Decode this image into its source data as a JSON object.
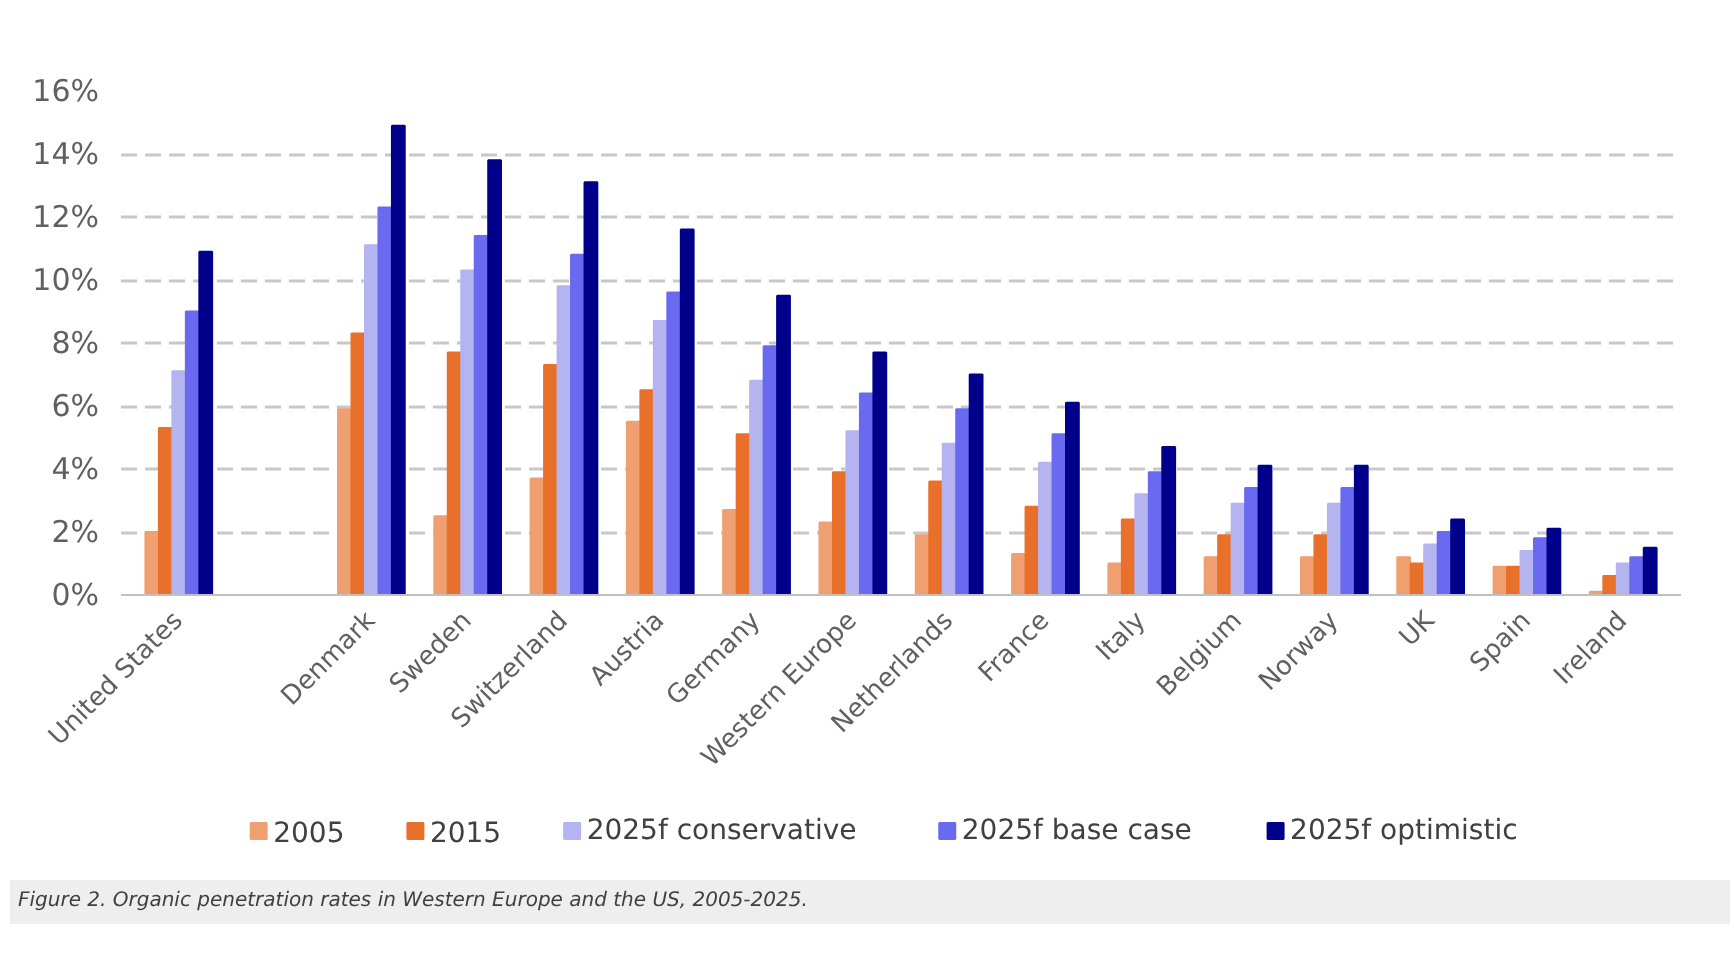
{
  "chart_data": {
    "type": "bar",
    "categories": [
      "United States",
      null,
      "Denmark",
      "Sweden",
      "Switzerland",
      "Austria",
      "Germany",
      "Western Europe",
      "Netherlands",
      "France",
      "Italy",
      "Belgium",
      "Norway",
      "UK",
      "Spain",
      "Ireland"
    ],
    "series": [
      {
        "name": "2005",
        "color": "#f0a070",
        "values": [
          2.0,
          null,
          5.9,
          2.5,
          3.7,
          5.5,
          2.7,
          2.3,
          1.9,
          1.3,
          1.0,
          1.2,
          1.2,
          1.2,
          0.9,
          0.1
        ]
      },
      {
        "name": "2015",
        "color": "#e8702a",
        "values": [
          5.3,
          null,
          8.3,
          7.7,
          7.3,
          6.5,
          5.1,
          3.9,
          3.6,
          2.8,
          2.4,
          1.9,
          1.9,
          1.0,
          0.9,
          0.6
        ]
      },
      {
        "name": "2025f conservative",
        "color": "#b4b4f0",
        "values": [
          7.1,
          null,
          11.1,
          10.3,
          9.8,
          8.7,
          6.8,
          5.2,
          4.8,
          4.2,
          3.2,
          2.9,
          2.9,
          1.6,
          1.4,
          1.0
        ]
      },
      {
        "name": "2025f base case",
        "color": "#6a6af0",
        "values": [
          9.0,
          null,
          12.3,
          11.4,
          10.8,
          9.6,
          7.9,
          6.4,
          5.9,
          5.1,
          3.9,
          3.4,
          3.4,
          2.0,
          1.8,
          1.2
        ]
      },
      {
        "name": "2025f optimistic",
        "color": "#00008b",
        "values": [
          10.9,
          null,
          14.9,
          13.8,
          13.1,
          11.6,
          9.5,
          7.7,
          7.0,
          6.1,
          4.7,
          4.1,
          4.1,
          2.4,
          2.1,
          1.5
        ]
      }
    ],
    "ylim": [
      0,
      16
    ],
    "yticks": [
      {
        "value": 0,
        "label": "0%"
      },
      {
        "value": 2,
        "label": "2%"
      },
      {
        "value": 4,
        "label": "4%"
      },
      {
        "value": 6,
        "label": "6%"
      },
      {
        "value": 8,
        "label": "8%"
      },
      {
        "value": 10,
        "label": "10%"
      },
      {
        "value": 12,
        "label": "12%"
      },
      {
        "value": 14,
        "label": "14%"
      },
      {
        "value": 16,
        "label": "16%"
      }
    ],
    "grid": "y",
    "legend": "bottom",
    "annotations": [
      "Figure 2. Organic penetration rates in Western Europe and the US, 2005-2025."
    ]
  }
}
